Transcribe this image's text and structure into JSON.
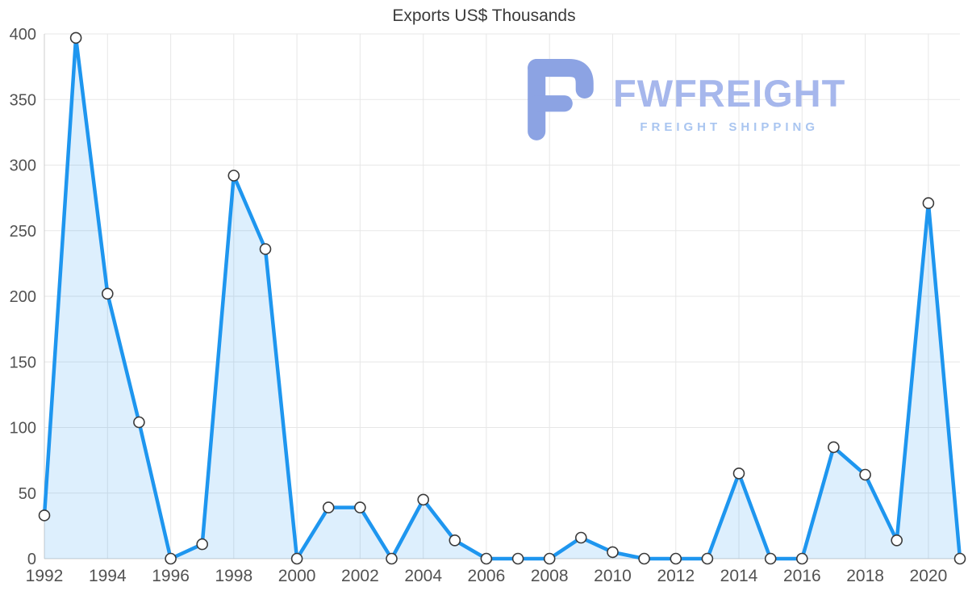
{
  "chart_data": {
    "type": "area",
    "title": "Exports US$ Thousands",
    "x": [
      1992,
      1993,
      1994,
      1995,
      1996,
      1997,
      1998,
      1999,
      2000,
      2001,
      2002,
      2003,
      2004,
      2005,
      2006,
      2007,
      2008,
      2009,
      2010,
      2011,
      2012,
      2013,
      2014,
      2015,
      2016,
      2017,
      2018,
      2019,
      2020,
      2021
    ],
    "values": [
      33,
      397,
      202,
      104,
      0,
      11,
      292,
      236,
      0,
      39,
      39,
      0,
      45,
      14,
      0,
      0,
      0,
      16,
      5,
      0,
      0,
      0,
      65,
      0,
      0,
      85,
      64,
      14,
      271,
      0
    ],
    "ylim": [
      0,
      400
    ],
    "y_ticks": [
      0,
      50,
      100,
      150,
      200,
      250,
      300,
      350,
      400
    ],
    "x_tick_labels": [
      "1992",
      "1994",
      "1996",
      "1998",
      "2000",
      "2002",
      "2004",
      "2006",
      "2008",
      "2010",
      "2012",
      "2014",
      "2016",
      "2018",
      "2020"
    ],
    "grid": "on",
    "legend": "none",
    "xlabel": "",
    "ylabel": "",
    "colors": {
      "line": "#1e96ef",
      "fill": "#1e96ef",
      "fill_opacity": 0.15,
      "marker_fill": "#ffffff",
      "marker_stroke": "#3a3a3a",
      "grid": "#e7e7e7",
      "axis": "#cccccc",
      "tick_text": "#525252",
      "title_text": "#3b3b3b"
    }
  },
  "watermark": {
    "brand": "FWFREIGHT",
    "subtitle": "FREIGHT SHIPPING",
    "logo_icon": "fwfreight-f-logo",
    "colors": {
      "icon": "#8ca3e3",
      "brand_text": "#a6b7ec",
      "subtitle_text": "#a9c5f0"
    }
  }
}
